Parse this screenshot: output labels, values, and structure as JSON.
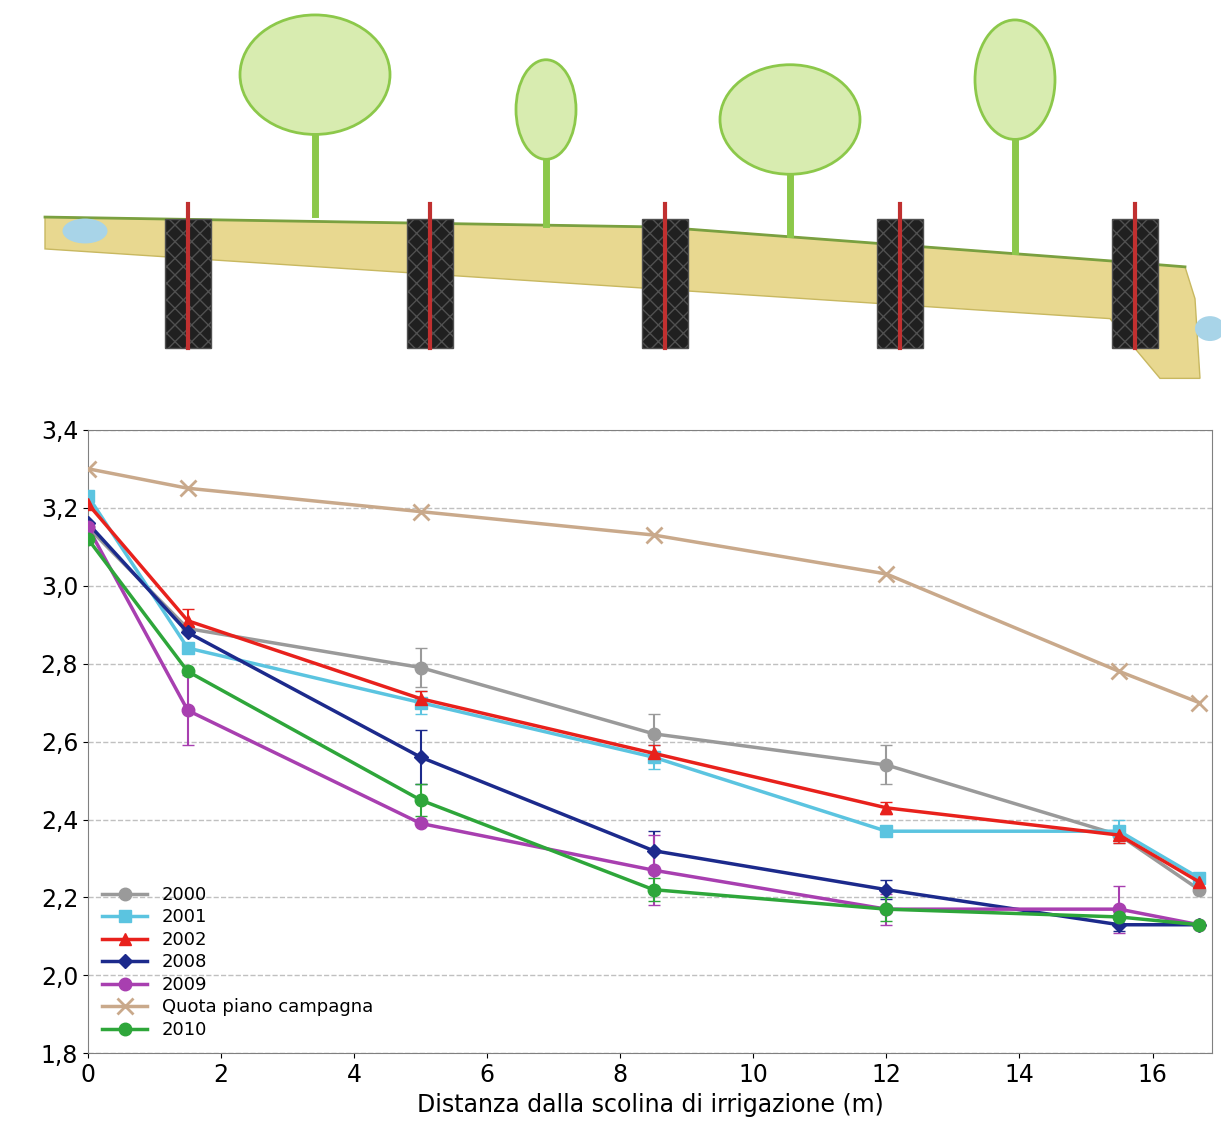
{
  "chart_data": {
    "type": "line",
    "x_label": "Distanza dalla scolina di irrigazione (m)",
    "x": [
      0,
      1.5,
      5,
      8.5,
      12,
      15.5,
      16.7
    ],
    "xlim": [
      0,
      16.9
    ],
    "xticks": [
      0,
      2,
      4,
      6,
      8,
      10,
      12,
      14,
      16
    ],
    "ylim": [
      1.8,
      3.4
    ],
    "yticks": [
      {
        "value": 1.8,
        "label": "1,8"
      },
      {
        "value": 2.0,
        "label": "2,0"
      },
      {
        "value": 2.2,
        "label": "2,2"
      },
      {
        "value": 2.4,
        "label": "2,4"
      },
      {
        "value": 2.6,
        "label": "2,6"
      },
      {
        "value": 2.8,
        "label": "2,8"
      },
      {
        "value": 3.0,
        "label": "3,0"
      },
      {
        "value": 3.2,
        "label": "3,2"
      },
      {
        "value": 3.4,
        "label": "3,4"
      }
    ],
    "grid": true,
    "legend": "lower left",
    "series": [
      {
        "name": "2000",
        "color": "#9a9a9a",
        "marker": "circle",
        "values": [
          3.15,
          2.89,
          2.79,
          2.62,
          2.54,
          2.36,
          2.22
        ],
        "errors": [
          null,
          null,
          0.05,
          0.05,
          0.05,
          null,
          null
        ]
      },
      {
        "name": "2001",
        "color": "#5bc4e0",
        "marker": "square",
        "values": [
          3.23,
          2.84,
          2.7,
          2.56,
          2.37,
          2.37,
          2.25
        ],
        "errors": [
          null,
          null,
          0.03,
          0.03,
          null,
          0.03,
          null
        ]
      },
      {
        "name": "2002",
        "color": "#e8211c",
        "marker": "triangle",
        "values": [
          3.21,
          2.91,
          2.71,
          2.57,
          2.43,
          2.36,
          2.24
        ],
        "errors": [
          null,
          0.03,
          0.02,
          0.02,
          0.015,
          0.02,
          null
        ]
      },
      {
        "name": "2008",
        "color": "#1c2a8c",
        "marker": "diamond",
        "values": [
          3.16,
          2.88,
          2.56,
          2.32,
          2.22,
          2.13,
          2.13
        ],
        "errors": [
          null,
          null,
          0.07,
          0.05,
          0.025,
          0.015,
          null
        ]
      },
      {
        "name": "2009",
        "color": "#a83fb0",
        "marker": "circle",
        "values": [
          3.15,
          2.68,
          2.39,
          2.27,
          2.17,
          2.17,
          2.13
        ],
        "errors": [
          null,
          0.09,
          null,
          0.09,
          0.04,
          0.06,
          null
        ]
      },
      {
        "name": "Quota piano campagna",
        "color": "#c9a98b",
        "marker": "x",
        "values": [
          3.3,
          3.25,
          3.19,
          3.13,
          3.03,
          2.78,
          2.7
        ]
      },
      {
        "name": "2010",
        "color": "#2ea63a",
        "marker": "circle",
        "values": [
          3.12,
          2.78,
          2.45,
          2.22,
          2.17,
          2.15,
          2.13
        ],
        "errors": [
          null,
          null,
          0.04,
          0.03,
          0.03,
          null,
          null
        ]
      }
    ]
  }
}
